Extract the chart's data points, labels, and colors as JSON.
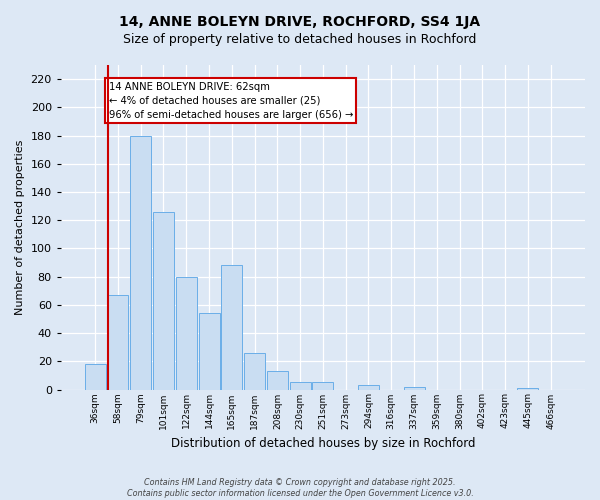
{
  "title": "14, ANNE BOLEYN DRIVE, ROCHFORD, SS4 1JA",
  "subtitle": "Size of property relative to detached houses in Rochford",
  "xlabel": "Distribution of detached houses by size in Rochford",
  "ylabel": "Number of detached properties",
  "bar_labels": [
    "36sqm",
    "58sqm",
    "79sqm",
    "101sqm",
    "122sqm",
    "144sqm",
    "165sqm",
    "187sqm",
    "208sqm",
    "230sqm",
    "251sqm",
    "273sqm",
    "294sqm",
    "316sqm",
    "337sqm",
    "359sqm",
    "380sqm",
    "402sqm",
    "423sqm",
    "445sqm",
    "466sqm"
  ],
  "bar_values": [
    18,
    67,
    180,
    126,
    80,
    54,
    88,
    26,
    13,
    5,
    5,
    0,
    3,
    0,
    2,
    0,
    0,
    0,
    0,
    1,
    0
  ],
  "bar_color": "#c9ddf2",
  "bar_edge_color": "#6aaee8",
  "annotation_title": "14 ANNE BOLEYN DRIVE: 62sqm",
  "annotation_line1": "← 4% of detached houses are smaller (25)",
  "annotation_line2": "96% of semi-detached houses are larger (656) →",
  "annotation_box_color": "#cc0000",
  "red_line_x": 0.57,
  "ylim": [
    0,
    230
  ],
  "yticks": [
    0,
    20,
    40,
    60,
    80,
    100,
    120,
    140,
    160,
    180,
    200,
    220
  ],
  "footer_line1": "Contains HM Land Registry data © Crown copyright and database right 2025.",
  "footer_line2": "Contains public sector information licensed under the Open Government Licence v3.0.",
  "bg_color": "#dde8f5",
  "grid_color": "#ffffff",
  "title_fontsize": 10,
  "subtitle_fontsize": 9
}
